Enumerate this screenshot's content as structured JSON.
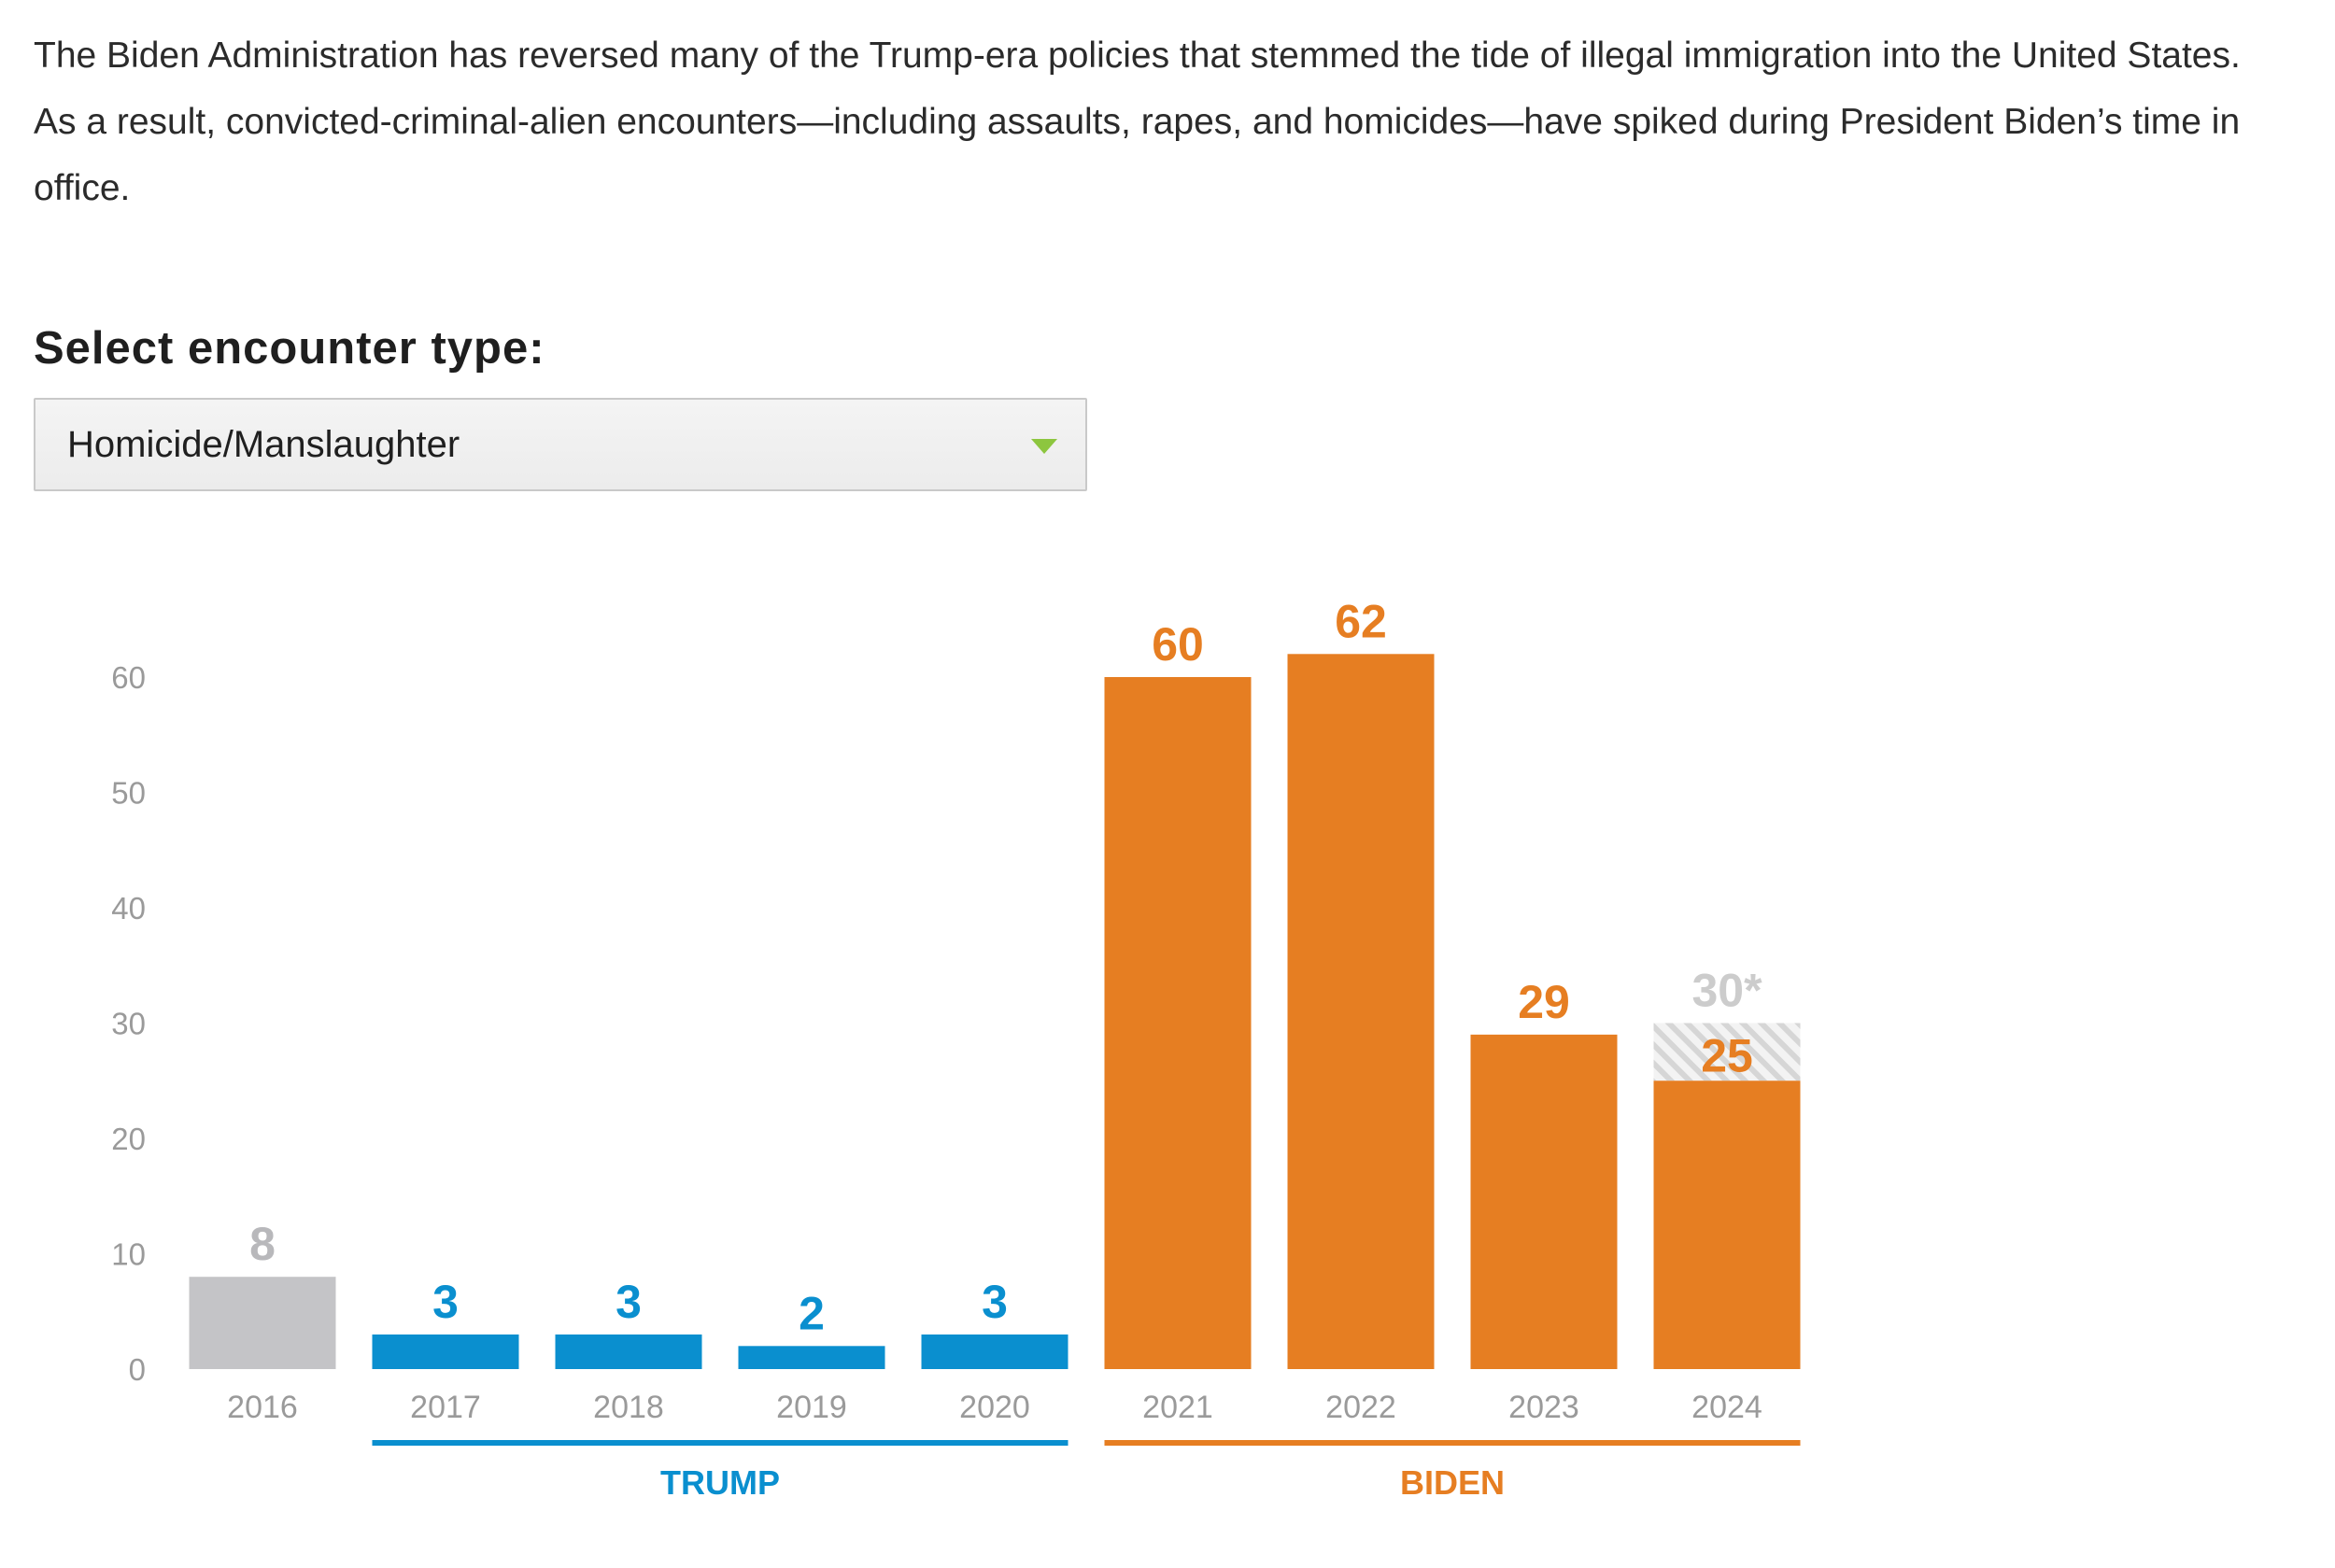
{
  "intro": {
    "text": "The Biden Administration has reversed many of the Trump-era policies that stemmed the tide of illegal immigration into the United States. As a result, convicted-criminal-alien encounters—including assaults, rapes, and homicides—have spiked during President Biden’s time in office."
  },
  "selector": {
    "label": "Select encounter type:",
    "value": "Homicide/Manslaughter",
    "caret_icon": "chevron-down-icon"
  },
  "chart_data": {
    "type": "bar",
    "title": "",
    "xlabel": "",
    "ylabel": "",
    "ylim": [
      0,
      60
    ],
    "yticks": [
      0,
      10,
      20,
      30,
      40,
      50,
      60
    ],
    "categories": [
      "2016",
      "2017",
      "2018",
      "2019",
      "2020",
      "2021",
      "2022",
      "2023",
      "2024"
    ],
    "values": [
      8,
      3,
      3,
      2,
      3,
      60,
      62,
      29,
      25
    ],
    "value_labels": [
      "8",
      "3",
      "3",
      "2",
      "3",
      "60",
      "62",
      "29",
      "25"
    ],
    "bar_groups": [
      "none",
      "trump",
      "trump",
      "trump",
      "trump",
      "biden",
      "biden",
      "biden",
      "biden"
    ],
    "projection": {
      "category": "2024",
      "value": 30,
      "label": "30*"
    },
    "groups": [
      {
        "key": "trump",
        "label": "TRUMP",
        "categories": [
          "2017",
          "2018",
          "2019",
          "2020"
        ]
      },
      {
        "key": "biden",
        "label": "BIDEN",
        "categories": [
          "2021",
          "2022",
          "2023",
          "2024"
        ]
      }
    ],
    "colors": {
      "none": "#c4c4c7",
      "trump": "#0a8fcf",
      "biden": "#e67e22",
      "none_label": "#b8b8bb",
      "projection": "#cccccc",
      "tick": "#9a9a9a"
    },
    "grid": false
  }
}
